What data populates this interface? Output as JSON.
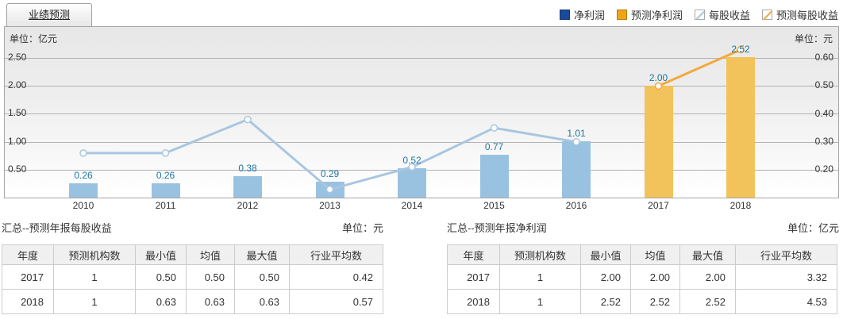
{
  "tab": {
    "label": "业绩预测"
  },
  "legend": [
    {
      "label": "净利润",
      "swatch": "square",
      "color": "#1B4A9B"
    },
    {
      "label": "预测净利润",
      "swatch": "square",
      "color": "#EFA516"
    },
    {
      "label": "每股收益",
      "swatch": "line",
      "color": "#A9C6E0"
    },
    {
      "label": "预测每股收益",
      "swatch": "line",
      "color": "#F2A93D"
    }
  ],
  "chart": {
    "left_axis": {
      "unit": "单位：亿元",
      "ticks": [
        {
          "label": "2.50",
          "value": 2.5
        },
        {
          "label": "2.00",
          "value": 2.0
        },
        {
          "label": "1.50",
          "value": 1.5
        },
        {
          "label": "1.00",
          "value": 1.0
        },
        {
          "label": "0.50",
          "value": 0.5
        }
      ]
    },
    "right_axis": {
      "unit": "单位：元",
      "ticks": [
        {
          "label": "0.60",
          "value": 0.6
        },
        {
          "label": "0.50",
          "value": 0.5
        },
        {
          "label": "0.40",
          "value": 0.4
        },
        {
          "label": "0.30",
          "value": 0.3
        },
        {
          "label": "0.20",
          "value": 0.2
        }
      ]
    }
  },
  "chart_data": {
    "type": "bar",
    "title": "业绩预测",
    "categories": [
      "2010",
      "2011",
      "2012",
      "2013",
      "2014",
      "2015",
      "2016",
      "2017",
      "2018"
    ],
    "left_axis_unit": "亿元",
    "right_axis_unit": "元",
    "left_ylim": [
      0,
      2.7
    ],
    "right_ylim_visible": [
      0.2,
      0.6
    ],
    "grid": true,
    "legend_position": "top-right",
    "series": [
      {
        "name": "净利润",
        "type": "bar",
        "axis": "left",
        "color": "#99C2E1",
        "values": [
          0.26,
          0.26,
          0.38,
          0.29,
          0.52,
          0.77,
          1.01,
          null,
          null
        ],
        "labels": [
          "0.26",
          "0.26",
          "0.38",
          "0.29",
          "0.52",
          "0.77",
          "1.01",
          null,
          null
        ]
      },
      {
        "name": "预测净利润",
        "type": "bar",
        "axis": "left",
        "color": "#F2C35B",
        "values": [
          null,
          null,
          null,
          null,
          null,
          null,
          null,
          2.0,
          2.52
        ],
        "labels": [
          null,
          null,
          null,
          null,
          null,
          null,
          null,
          "2.00",
          "2.52"
        ]
      },
      {
        "name": "每股收益",
        "type": "line",
        "axis": "right",
        "color": "#A9C6E0",
        "values": [
          0.26,
          0.26,
          0.38,
          0.13,
          0.21,
          0.35,
          0.3,
          null,
          null
        ]
      },
      {
        "name": "预测每股收益",
        "type": "line",
        "axis": "right",
        "color": "#F2A93D",
        "values": [
          null,
          null,
          null,
          null,
          null,
          null,
          null,
          0.5,
          0.63
        ]
      }
    ]
  },
  "sections": {
    "left": {
      "title": "汇总--预测年报每股收益",
      "unit": "单位：元",
      "headers": [
        "年度",
        "预测机构数",
        "最小值",
        "均值",
        "最大值",
        "行业平均数"
      ],
      "rows": [
        [
          "2017",
          "1",
          "0.50",
          "0.50",
          "0.50",
          "0.42"
        ],
        [
          "2018",
          "1",
          "0.63",
          "0.63",
          "0.63",
          "0.57"
        ]
      ]
    },
    "right": {
      "title": "汇总--预测年报净利润",
      "unit": "单位：亿元",
      "headers": [
        "年度",
        "预测机构数",
        "最小值",
        "均值",
        "最大值",
        "行业平均数"
      ],
      "rows": [
        [
          "2017",
          "1",
          "2.00",
          "2.00",
          "2.00",
          "3.32"
        ],
        [
          "2018",
          "1",
          "2.52",
          "2.52",
          "2.52",
          "4.53"
        ]
      ]
    }
  }
}
